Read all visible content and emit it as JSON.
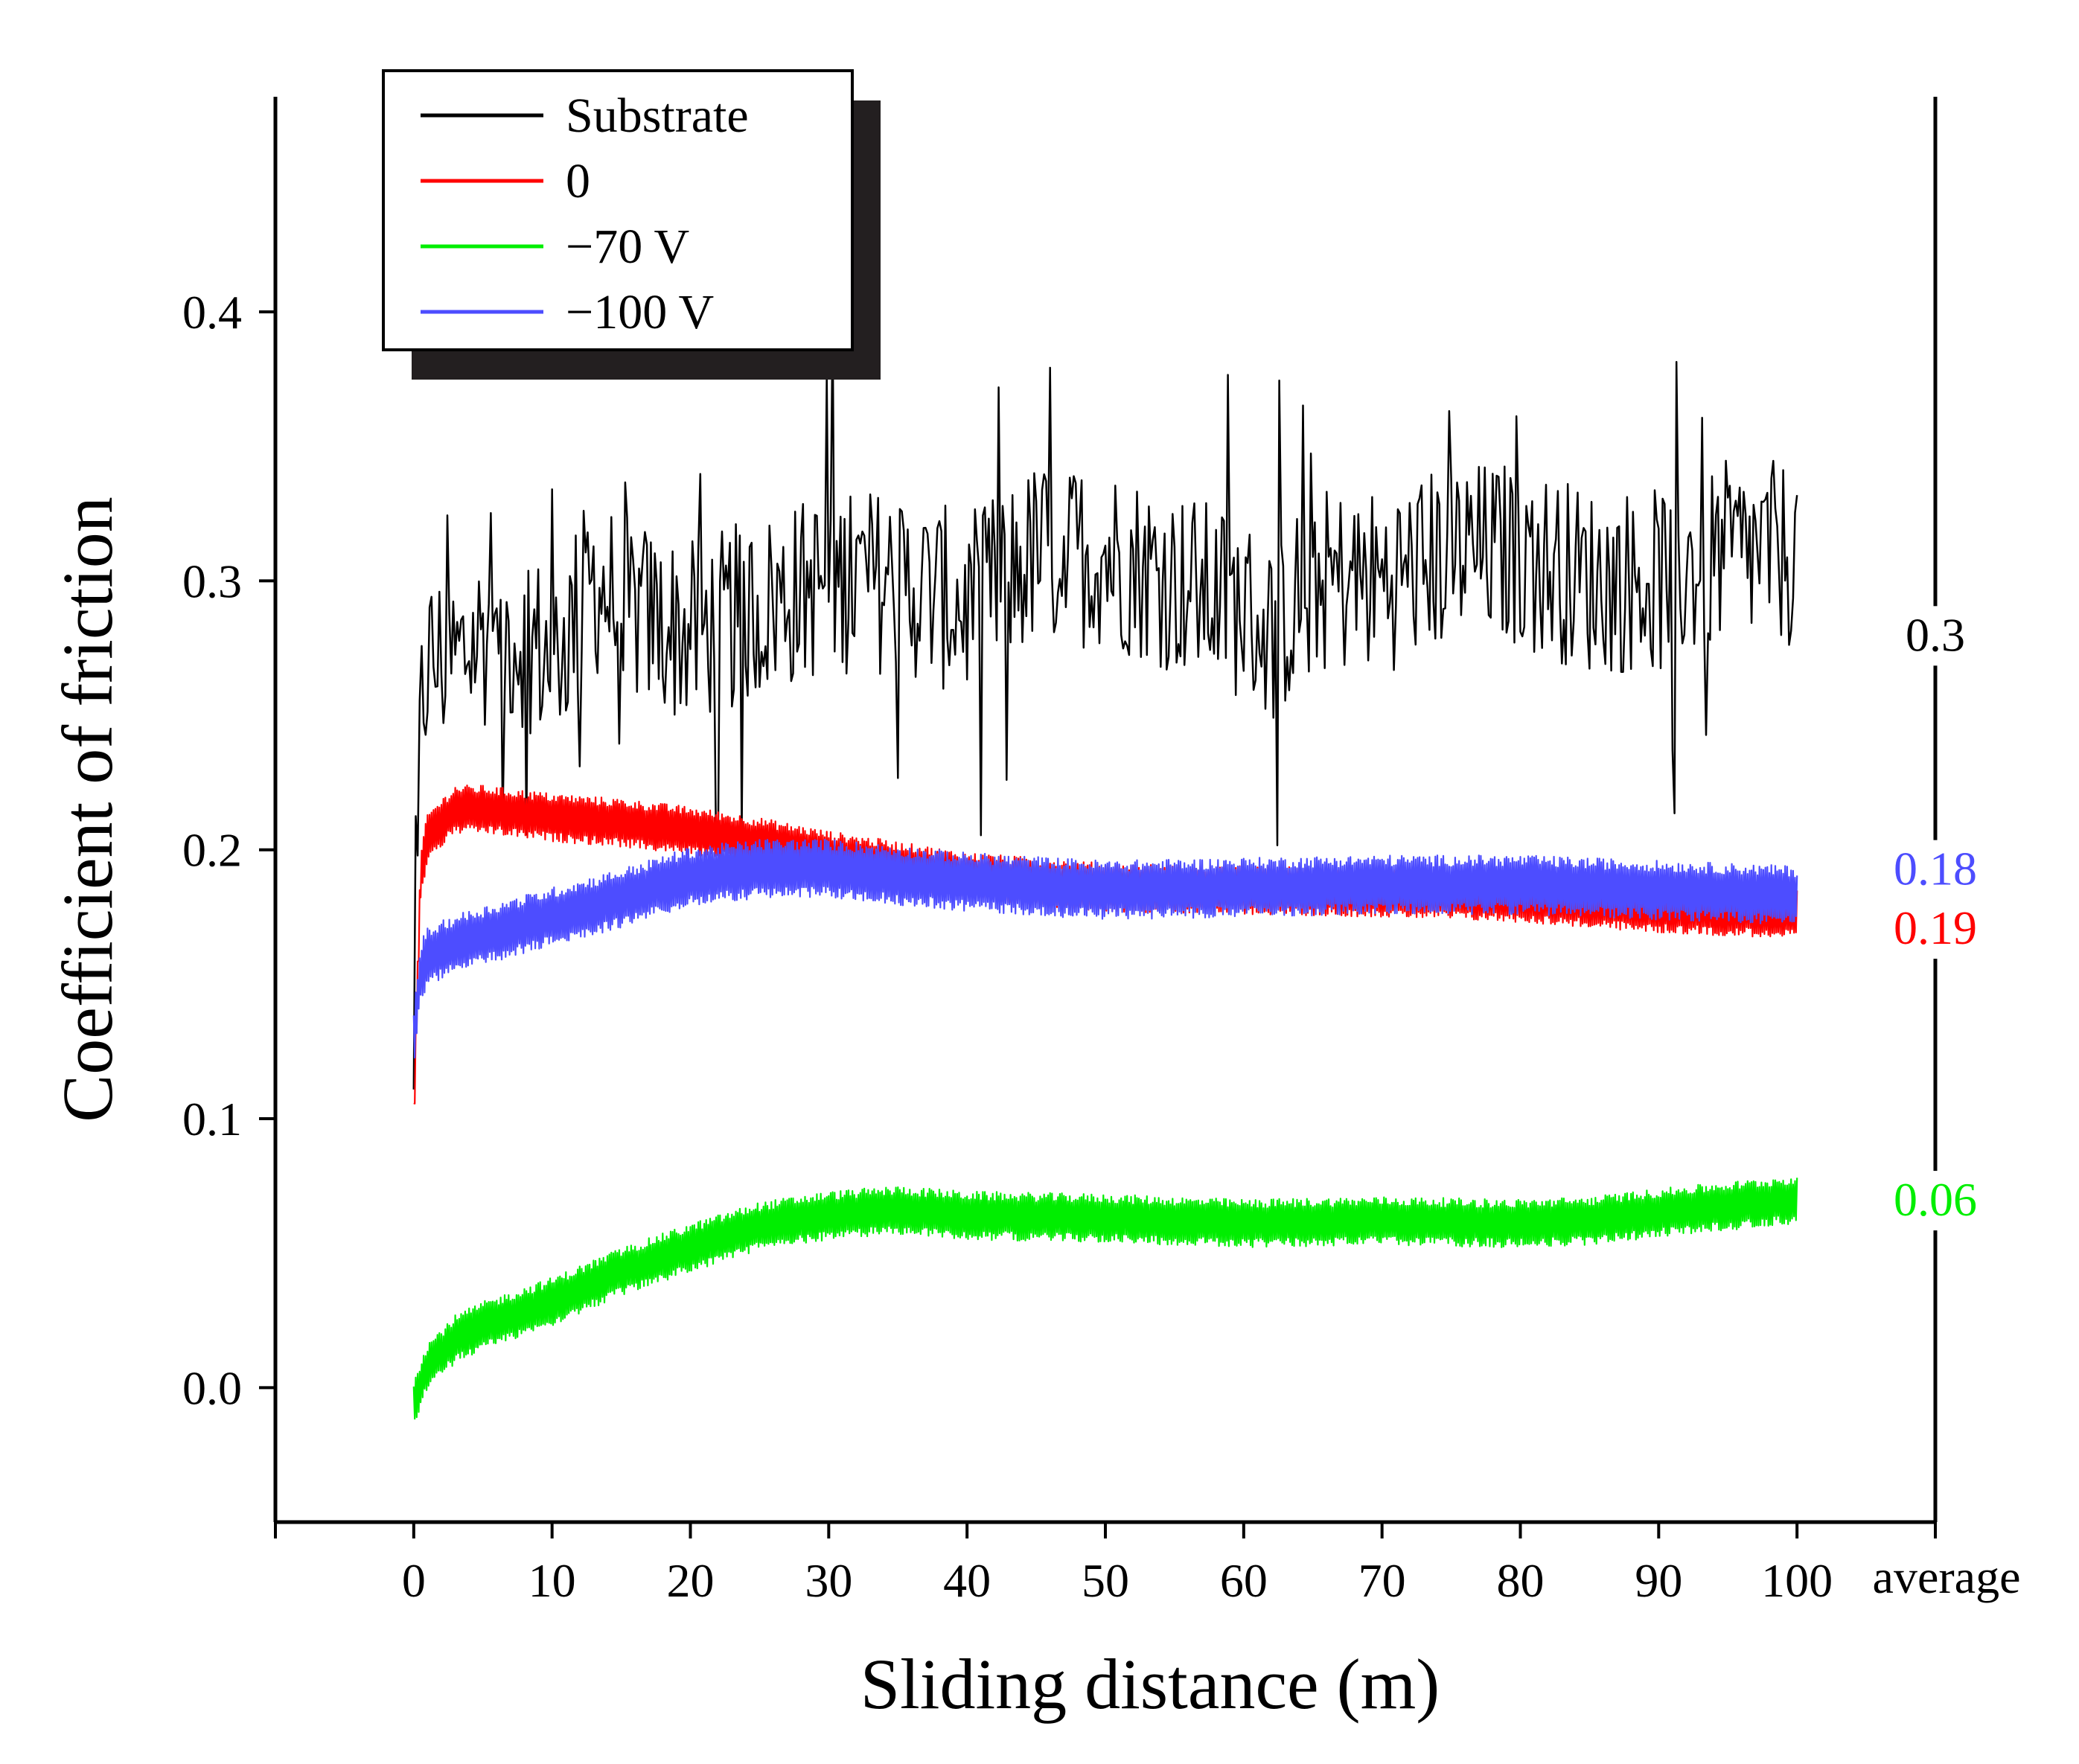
{
  "chart_data": {
    "type": "line",
    "title": "",
    "xlabel": "Sliding distance (m)",
    "ylabel": "Coefficient of friction",
    "xlim": [
      -10,
      110
    ],
    "ylim": [
      -0.05,
      0.48
    ],
    "x_ticks": [
      0,
      10,
      20,
      30,
      40,
      50,
      60,
      70,
      80,
      90,
      100
    ],
    "x_tick_labels": [
      "0",
      "10",
      "20",
      "30",
      "40",
      "50",
      "60",
      "70",
      "80",
      "90",
      "100"
    ],
    "extra_x_label": "average",
    "y_ticks": [
      0.0,
      0.1,
      0.2,
      0.3,
      0.4
    ],
    "y_tick_labels": [
      "0.0",
      "0.1",
      "0.2",
      "0.3",
      "0.4"
    ],
    "grid": false,
    "legend_position": "top-left",
    "series": [
      {
        "name": "Substrate",
        "color": "#000000",
        "x": [
          0,
          0.5,
          1,
          3,
          5,
          8,
          10,
          13,
          15,
          20,
          25,
          30,
          35,
          40,
          45,
          50,
          55,
          60,
          62,
          65,
          70,
          75,
          80,
          85,
          90,
          95,
          100
        ],
        "values": [
          0.1,
          0.25,
          0.27,
          0.27,
          0.28,
          0.28,
          0.27,
          0.3,
          0.29,
          0.28,
          0.29,
          0.3,
          0.3,
          0.29,
          0.31,
          0.31,
          0.3,
          0.29,
          0.28,
          0.3,
          0.3,
          0.31,
          0.31,
          0.3,
          0.3,
          0.31,
          0.31
        ],
        "noise": 0.035,
        "average": "0.3"
      },
      {
        "name": "0",
        "color": "#ff0000",
        "x": [
          0,
          0.5,
          1,
          3,
          5,
          10,
          15,
          20,
          25,
          30,
          40,
          50,
          60,
          70,
          80,
          90,
          100
        ],
        "values": [
          0.1,
          0.19,
          0.205,
          0.215,
          0.215,
          0.212,
          0.21,
          0.207,
          0.203,
          0.198,
          0.19,
          0.186,
          0.185,
          0.184,
          0.182,
          0.178,
          0.176
        ],
        "noise": 0.009,
        "average": "0.19"
      },
      {
        "name": "−70 V",
        "color": "#00ee00",
        "x": [
          0,
          1,
          3,
          5,
          10,
          15,
          20,
          25,
          30,
          35,
          40,
          50,
          60,
          70,
          80,
          85,
          90,
          100
        ],
        "values": [
          -0.005,
          0.008,
          0.018,
          0.023,
          0.032,
          0.043,
          0.052,
          0.06,
          0.064,
          0.066,
          0.064,
          0.063,
          0.061,
          0.062,
          0.061,
          0.062,
          0.065,
          0.07
        ],
        "noise": 0.009,
        "average": "0.06"
      },
      {
        "name": "−100 V",
        "color": "#4d4dff",
        "x": [
          0,
          0.5,
          1,
          3,
          5,
          10,
          15,
          20,
          25,
          30,
          40,
          50,
          60,
          70,
          80,
          90,
          100
        ],
        "values": [
          0.13,
          0.155,
          0.16,
          0.165,
          0.168,
          0.175,
          0.182,
          0.19,
          0.193,
          0.193,
          0.188,
          0.185,
          0.186,
          0.187,
          0.187,
          0.185,
          0.183
        ],
        "noise": 0.011,
        "average": "0.18"
      }
    ]
  }
}
